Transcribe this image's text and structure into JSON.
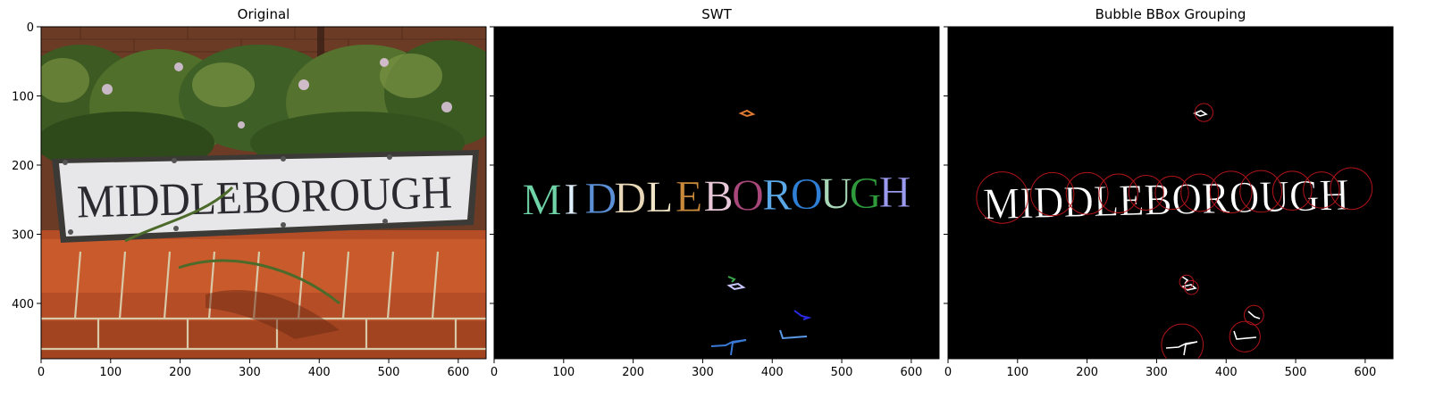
{
  "chart_data": [
    {
      "type": "image",
      "title": "Original",
      "sign_text": "MIDDLEBOROUGH",
      "xlim": [
        0,
        640
      ],
      "ylim": [
        480,
        0
      ],
      "xticks": [
        0,
        100,
        200,
        300,
        400,
        500,
        600
      ],
      "yticks": [
        0,
        100,
        200,
        300,
        400
      ]
    },
    {
      "type": "image",
      "title": "SWT",
      "sign_text": "MIDDLEBOROUGH",
      "letter_colors": [
        "#6fd3a8",
        "#e0f0ff",
        "#5b8fd6",
        "#e8d8b8",
        "#f2e6c8",
        "#c98a3c",
        "#e8c8d8",
        "#a8477a",
        "#5aa8e8",
        "#2f7fd6",
        "#a8d8b8",
        "#2f9a3c",
        "#9a9aee",
        "#1f2fd6"
      ],
      "xlim": [
        0,
        640
      ],
      "ylim": [
        480,
        0
      ],
      "xticks": [
        0,
        100,
        200,
        300,
        400,
        500,
        600
      ],
      "yticks": [
        0,
        100,
        200,
        300,
        400
      ]
    },
    {
      "type": "image",
      "title": "Bubble BBox Grouping",
      "sign_text": "MIDDLEBOROUGH",
      "circle_color": "#b0141a",
      "bubbles": [
        {
          "x": 368,
          "y": 124,
          "r": 13
        },
        {
          "x": 78,
          "y": 247,
          "r": 37
        },
        {
          "x": 150,
          "y": 242,
          "r": 31
        },
        {
          "x": 200,
          "y": 241,
          "r": 30
        },
        {
          "x": 245,
          "y": 241,
          "r": 28
        },
        {
          "x": 285,
          "y": 240,
          "r": 25
        },
        {
          "x": 322,
          "y": 240,
          "r": 24
        },
        {
          "x": 362,
          "y": 240,
          "r": 27
        },
        {
          "x": 407,
          "y": 239,
          "r": 30
        },
        {
          "x": 450,
          "y": 238,
          "r": 30
        },
        {
          "x": 495,
          "y": 237,
          "r": 28
        },
        {
          "x": 537,
          "y": 236,
          "r": 26
        },
        {
          "x": 580,
          "y": 234,
          "r": 30
        },
        {
          "x": 343,
          "y": 369,
          "r": 10
        },
        {
          "x": 350,
          "y": 377,
          "r": 10
        },
        {
          "x": 440,
          "y": 417,
          "r": 14
        },
        {
          "x": 427,
          "y": 448,
          "r": 22
        },
        {
          "x": 337,
          "y": 460,
          "r": 30
        }
      ],
      "xlim": [
        0,
        640
      ],
      "ylim": [
        480,
        0
      ],
      "xticks": [
        0,
        100,
        200,
        300,
        400,
        500,
        600
      ],
      "yticks": [
        0,
        100,
        200,
        300,
        400
      ]
    }
  ]
}
